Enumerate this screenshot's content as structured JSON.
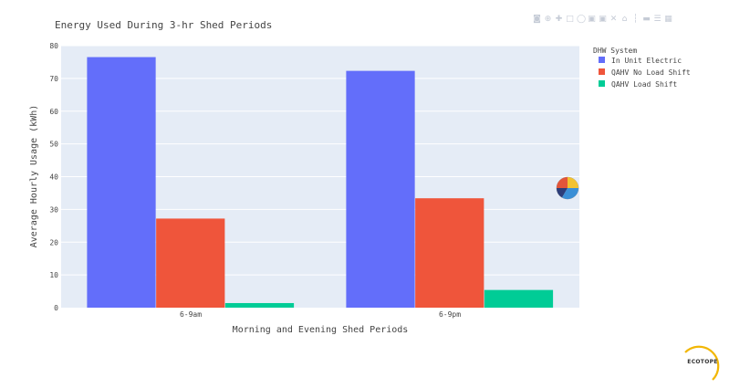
{
  "chart_data": {
    "type": "bar",
    "title": "Energy Used During 3-hr Shed Periods",
    "xlabel": "Morning and Evening Shed Periods",
    "ylabel": "Average Hourly Usage (kWh)",
    "categories": [
      "6-9am",
      "6-9pm"
    ],
    "series": [
      {
        "name": "In Unit Electric",
        "values": [
          76.5,
          72.3
        ],
        "color": "#636efa"
      },
      {
        "name": "QAHV No Load Shift",
        "values": [
          27.2,
          33.4
        ],
        "color": "#ef553b"
      },
      {
        "name": "QAHV Load Shift",
        "values": [
          1.4,
          5.4
        ],
        "color": "#00cc96"
      }
    ],
    "ylim": [
      0,
      80
    ],
    "yticks": [
      0,
      10,
      20,
      30,
      40,
      50,
      60,
      70,
      80
    ],
    "grid": true,
    "legend_title": "DHW System",
    "legend_position": "right"
  },
  "modebar": {
    "icons": [
      "camera-icon",
      "zoom-icon",
      "pan-icon",
      "box-select-icon",
      "lasso-icon",
      "zoom-in-icon",
      "zoom-out-icon",
      "autoscale-icon",
      "reset-axes-icon",
      "spike-lines-icon",
      "hover-closest-icon",
      "hover-compare-icon",
      "plotly-logo-icon"
    ]
  },
  "logo": {
    "text": "ECOTOPE",
    "accent": "#f2b705"
  },
  "colors": {
    "plot_bg": "#e5ecf6",
    "text": "#444444",
    "grid": "#ffffff"
  }
}
